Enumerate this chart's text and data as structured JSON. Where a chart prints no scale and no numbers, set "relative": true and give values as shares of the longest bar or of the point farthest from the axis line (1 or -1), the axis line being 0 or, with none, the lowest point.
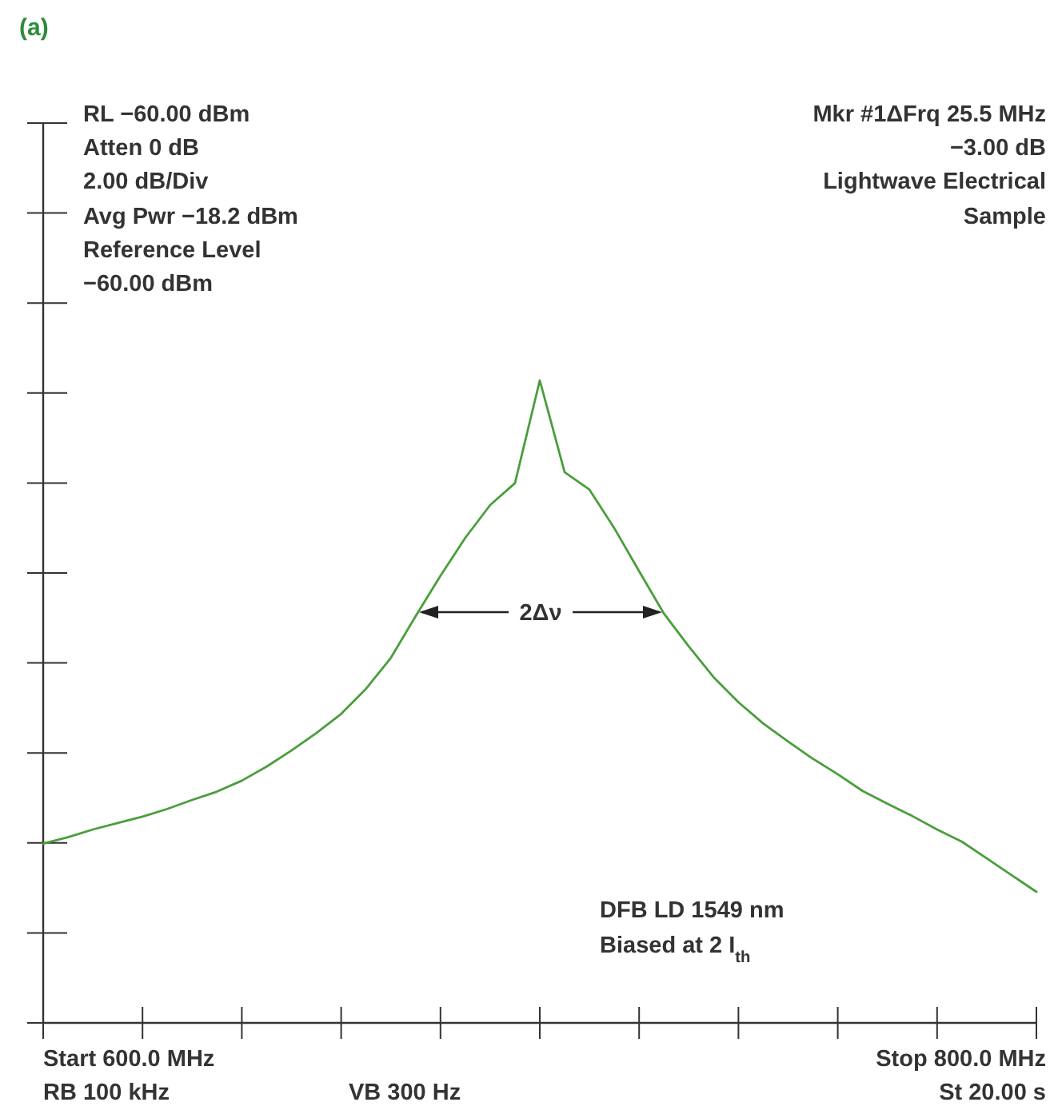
{
  "chart_data": {
    "type": "line",
    "title": "(a)",
    "relative": true,
    "categories": [
      null,
      null,
      null,
      null,
      null,
      null,
      null,
      null,
      null,
      null,
      null,
      null,
      null,
      null,
      null,
      null,
      null,
      null,
      null,
      null,
      null,
      null,
      null,
      null,
      null,
      null,
      null,
      null,
      null,
      null,
      null,
      null,
      null,
      null,
      null,
      null,
      null,
      null,
      null,
      null,
      null
    ],
    "series": [
      {
        "color": "#4a9e3c",
        "values": [
          0.279,
          0.289,
          0.301,
          0.311,
          0.321,
          0.333,
          0.347,
          0.36,
          0.377,
          0.399,
          0.424,
          0.451,
          0.481,
          0.52,
          0.568,
          0.633,
          0.696,
          0.755,
          0.806,
          0.84,
          1,
          0.857,
          0.83,
          0.77,
          0.703,
          0.637,
          0.586,
          0.538,
          0.499,
          0.466,
          0.438,
          0.411,
          0.387,
          0.361,
          0.341,
          0.322,
          0.301,
          0.282,
          0.256,
          0.23,
          0.204
        ]
      }
    ],
    "line_style": "solid",
    "annotations": [
      "RL −60.00 dBm",
      "Atten 0 dB",
      "2.00 dB/Div",
      "Avg Pwr −18.2 dBm",
      "Reference Level",
      "−60.00 dBm",
      "Mkr #1ΔFrq 25.5 MHz",
      "−3.00 dB",
      "Lightwave Electrical",
      "Sample",
      "DFB LD 1549 nm",
      "Biased at 2 I$_{th}$",
      "Start 600.0 MHz",
      "Stop 800.0 MHz",
      "RB 100 kHz",
      "VB 300 Hz",
      "St 20.00 s",
      "2Δν"
    ]
  }
}
